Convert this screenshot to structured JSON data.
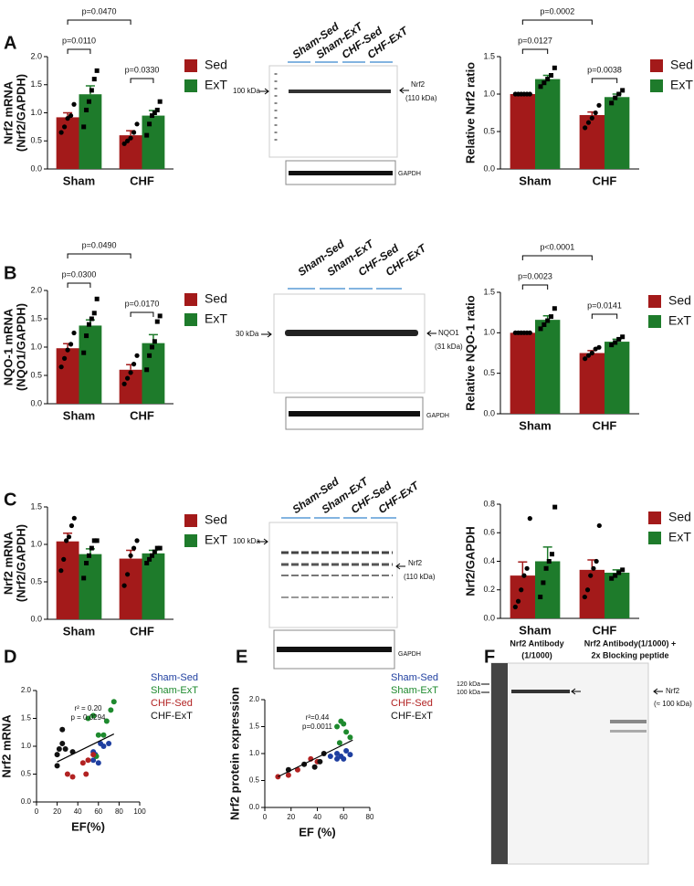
{
  "panel_labels": [
    "A",
    "B",
    "C",
    "D",
    "E",
    "F"
  ],
  "chart_data": [
    {
      "type": "bar",
      "ylabel": [
        "Nrf2 mRNA",
        "(Nrf2/GAPDH)"
      ],
      "categories": [
        "Sham",
        "CHF"
      ],
      "ylim": [
        0,
        2
      ],
      "yticks": [
        {
          "value": 0,
          "label": "0.0"
        },
        {
          "value": 0.5,
          "label": "0.5"
        },
        {
          "value": 1,
          "label": "1.0"
        },
        {
          "value": 1.5,
          "label": "1.5"
        },
        {
          "value": 2,
          "label": "2.0"
        }
      ],
      "legend": "right",
      "series": [
        {
          "name": "Sed",
          "color": "#a31a1a",
          "values": [
            0.92,
            0.6
          ],
          "errors": [
            0.08,
            0.08
          ],
          "points": [
            [
              0.65,
              0.75,
              0.9,
              0.95,
              1.15
            ],
            [
              0.45,
              0.5,
              0.55,
              0.65,
              0.8
            ]
          ]
        },
        {
          "name": "ExT",
          "color": "#1e7b2b",
          "values": [
            1.33,
            0.95
          ],
          "errors": [
            0.15,
            0.09
          ],
          "points": [
            [
              0.75,
              1.05,
              1.2,
              1.4,
              1.6,
              1.75
            ],
            [
              0.6,
              0.8,
              0.95,
              1.0,
              1.05,
              1.2
            ]
          ]
        }
      ],
      "annotations": [
        "p=0.0470",
        "p=0.0110",
        "p=0.0330"
      ]
    },
    {
      "type": "bar",
      "ylabel": [
        "Relative Nrf2 ratio"
      ],
      "categories": [
        "Sham",
        "CHF"
      ],
      "ylim": [
        0,
        1.5
      ],
      "yticks": [
        {
          "value": 0,
          "label": "0.0"
        },
        {
          "value": 0.5,
          "label": "0.5"
        },
        {
          "value": 1,
          "label": "1.0"
        },
        {
          "value": 1.5,
          "label": "1.5"
        }
      ],
      "legend": "right",
      "series": [
        {
          "name": "Sed",
          "color": "#a31a1a",
          "values": [
            1.0,
            0.72
          ],
          "errors": [
            0,
            0.04
          ],
          "points": [
            [
              1,
              1,
              1,
              1,
              1,
              1
            ],
            [
              0.55,
              0.62,
              0.68,
              0.75,
              0.85
            ]
          ]
        },
        {
          "name": "ExT",
          "color": "#1e7b2b",
          "values": [
            1.2,
            0.96
          ],
          "errors": [
            0.05,
            0.04
          ],
          "points": [
            [
              1.1,
              1.15,
              1.2,
              1.25,
              1.35
            ],
            [
              0.88,
              0.95,
              1.0,
              1.05
            ]
          ]
        }
      ],
      "annotations": [
        "p=0.0002",
        "p=0.0127",
        "p=0.0038"
      ]
    },
    {
      "type": "bar",
      "ylabel": [
        "NQO-1 mRNA",
        "(NQO1/GAPDH)"
      ],
      "categories": [
        "Sham",
        "CHF"
      ],
      "ylim": [
        0,
        2
      ],
      "yticks": [
        {
          "value": 0,
          "label": "0.0"
        },
        {
          "value": 0.5,
          "label": "0.5"
        },
        {
          "value": 1,
          "label": "1.0"
        },
        {
          "value": 1.5,
          "label": "1.5"
        },
        {
          "value": 2,
          "label": "2.0"
        }
      ],
      "legend": "right",
      "series": [
        {
          "name": "Sed",
          "color": "#a31a1a",
          "values": [
            0.98,
            0.6
          ],
          "errors": [
            0.08,
            0.09
          ],
          "points": [
            [
              0.65,
              0.8,
              0.95,
              1.05,
              1.25
            ],
            [
              0.35,
              0.45,
              0.55,
              0.7,
              0.85
            ]
          ]
        },
        {
          "name": "ExT",
          "color": "#1e7b2b",
          "values": [
            1.38,
            1.07
          ],
          "errors": [
            0.1,
            0.15
          ],
          "points": [
            [
              0.9,
              1.2,
              1.4,
              1.5,
              1.6,
              1.85
            ],
            [
              0.6,
              0.85,
              1.0,
              1.1,
              1.45,
              1.55
            ]
          ]
        }
      ],
      "annotations": [
        "p=0.0490",
        "p=0.0300",
        "p=0.0170"
      ]
    },
    {
      "type": "bar",
      "ylabel": [
        "Relative NQO-1 ratio"
      ],
      "categories": [
        "Sham",
        "CHF"
      ],
      "ylim": [
        0,
        1.5
      ],
      "yticks": [
        {
          "value": 0,
          "label": "0.0"
        },
        {
          "value": 0.5,
          "label": "0.5"
        },
        {
          "value": 1,
          "label": "1.0"
        },
        {
          "value": 1.5,
          "label": "1.5"
        }
      ],
      "legend": "right",
      "series": [
        {
          "name": "Sed",
          "color": "#a31a1a",
          "values": [
            1.0,
            0.75
          ],
          "errors": [
            0,
            0.03
          ],
          "points": [
            [
              1,
              1,
              1,
              1,
              1,
              1
            ],
            [
              0.68,
              0.72,
              0.75,
              0.8,
              0.82
            ]
          ]
        },
        {
          "name": "ExT",
          "color": "#1e7b2b",
          "values": [
            1.16,
            0.89
          ],
          "errors": [
            0.05,
            0.03
          ],
          "points": [
            [
              1.05,
              1.1,
              1.15,
              1.2,
              1.3
            ],
            [
              0.85,
              0.88,
              0.92,
              0.95
            ]
          ]
        }
      ],
      "annotations": [
        "p<0.0001",
        "p=0.0023",
        "p=0.0141"
      ]
    },
    {
      "type": "bar",
      "ylabel": [
        "Nrf2 mRNA",
        "(Nrf2/GAPDH)"
      ],
      "categories": [
        "Sham",
        "CHF"
      ],
      "ylim": [
        0,
        1.5
      ],
      "yticks": [
        {
          "value": 0,
          "label": "0.0"
        },
        {
          "value": 0.5,
          "label": "0.5"
        },
        {
          "value": 1,
          "label": "1.0"
        },
        {
          "value": 1.5,
          "label": "1.5"
        }
      ],
      "legend": "right",
      "series": [
        {
          "name": "Sed",
          "color": "#a31a1a",
          "values": [
            1.04,
            0.81
          ],
          "errors": [
            0.11,
            0.11
          ],
          "points": [
            [
              0.65,
              0.8,
              1.05,
              1.1,
              1.25,
              1.35
            ],
            [
              0.45,
              0.6,
              0.85,
              0.95,
              1.05
            ]
          ]
        },
        {
          "name": "ExT",
          "color": "#1e7b2b",
          "values": [
            0.87,
            0.88
          ],
          "errors": [
            0.07,
            0.04
          ],
          "points": [
            [
              0.55,
              0.75,
              0.85,
              0.95,
              1.05,
              1.05
            ],
            [
              0.75,
              0.8,
              0.85,
              0.9,
              0.95,
              0.95
            ]
          ]
        }
      ]
    },
    {
      "type": "bar",
      "ylabel": [
        "Nrf2/GAPDH"
      ],
      "categories": [
        "Sham",
        "CHF"
      ],
      "ylim": [
        0,
        0.8
      ],
      "yticks": [
        {
          "value": 0,
          "label": "0.0"
        },
        {
          "value": 0.2,
          "label": "0.2"
        },
        {
          "value": 0.4,
          "label": "0.4"
        },
        {
          "value": 0.6,
          "label": "0.6"
        },
        {
          "value": 0.8,
          "label": "0.8"
        }
      ],
      "legend": "right",
      "series": [
        {
          "name": "Sed",
          "color": "#a31a1a",
          "values": [
            0.3,
            0.34
          ],
          "errors": [
            0.095,
            0.07
          ],
          "points": [
            [
              0.08,
              0.12,
              0.2,
              0.3,
              0.35,
              0.7
            ],
            [
              0.15,
              0.2,
              0.3,
              0.35,
              0.4,
              0.65
            ]
          ]
        },
        {
          "name": "ExT",
          "color": "#1e7b2b",
          "values": [
            0.4,
            0.32
          ],
          "errors": [
            0.1,
            0.02
          ],
          "points": [
            [
              0.15,
              0.25,
              0.35,
              0.4,
              0.45,
              0.78
            ],
            [
              0.28,
              0.3,
              0.32,
              0.34
            ]
          ]
        }
      ]
    },
    {
      "type": "scatter",
      "xlabel": "EF(%)",
      "ylabel": [
        "Nrf2 mRNA"
      ],
      "xlim": [
        0,
        100
      ],
      "xticks": [
        0,
        20,
        40,
        60,
        80,
        100
      ],
      "ylim": [
        0,
        2
      ],
      "yticks": [
        {
          "value": 0,
          "label": "0.0"
        },
        {
          "value": 0.5,
          "label": "0.5"
        },
        {
          "value": 1,
          "label": "1.0"
        },
        {
          "value": 1.5,
          "label": "1.5"
        },
        {
          "value": 2,
          "label": "2.0"
        }
      ],
      "legend": "right",
      "annotations": [
        "r² = 0.20",
        "p = 0.0294"
      ],
      "trend": {
        "x": [
          20,
          75
        ],
        "y": [
          0.72,
          1.22
        ]
      },
      "series": [
        {
          "name": "Sham-Sed",
          "color": "#1f3fa0",
          "x": [
            55,
            57,
            60,
            62,
            65,
            70,
            55
          ],
          "y": [
            0.75,
            0.85,
            0.7,
            1.05,
            1.0,
            1.05,
            0.9
          ]
        },
        {
          "name": "Sham-ExT",
          "color": "#1e8a2e",
          "x": [
            50,
            55,
            60,
            65,
            68,
            72,
            75,
            58
          ],
          "y": [
            1.5,
            1.55,
            1.2,
            1.2,
            1.45,
            1.65,
            1.8,
            0.82
          ]
        },
        {
          "name": "CHF-Sed",
          "color": "#b22222",
          "x": [
            30,
            35,
            45,
            48,
            50,
            55
          ],
          "y": [
            0.5,
            0.45,
            0.7,
            0.5,
            0.75,
            0.85
          ]
        },
        {
          "name": "CHF-ExT",
          "color": "#111111",
          "x": [
            20,
            22,
            25,
            20,
            28,
            35,
            25
          ],
          "y": [
            0.65,
            0.95,
            1.3,
            0.85,
            0.95,
            0.9,
            1.05
          ]
        }
      ]
    },
    {
      "type": "scatter",
      "xlabel": "EF (%)",
      "ylabel": [
        "Nrf2 protein expression"
      ],
      "xlim": [
        0,
        80
      ],
      "xticks": [
        0,
        20,
        40,
        60,
        80
      ],
      "ylim": [
        0,
        2
      ],
      "yticks": [
        {
          "value": 0,
          "label": "0.0"
        },
        {
          "value": 0.5,
          "label": "0.5"
        },
        {
          "value": 1,
          "label": "1.0"
        },
        {
          "value": 1.5,
          "label": "1.5"
        },
        {
          "value": 2,
          "label": "2.0"
        }
      ],
      "legend": "right",
      "annotations": [
        "r²=0.44",
        "p=0.0011"
      ],
      "trend": {
        "x": [
          10,
          67
        ],
        "y": [
          0.57,
          1.25
        ]
      },
      "series": [
        {
          "name": "Sham-Sed",
          "color": "#1f3fa0",
          "x": [
            50,
            55,
            58,
            60,
            62,
            65,
            55
          ],
          "y": [
            0.95,
            1.0,
            0.95,
            0.9,
            1.05,
            0.98,
            0.9
          ]
        },
        {
          "name": "Sham-ExT",
          "color": "#1e8a2e",
          "x": [
            55,
            58,
            60,
            62,
            65,
            57
          ],
          "y": [
            1.5,
            1.6,
            1.55,
            1.4,
            1.3,
            1.2
          ]
        },
        {
          "name": "CHF-Sed",
          "color": "#b22222",
          "x": [
            10,
            18,
            25,
            35,
            40
          ],
          "y": [
            0.57,
            0.6,
            0.7,
            0.9,
            0.85
          ]
        },
        {
          "name": "CHF-ExT",
          "color": "#111111",
          "x": [
            18,
            30,
            38,
            42,
            45
          ],
          "y": [
            0.7,
            0.8,
            0.75,
            0.85,
            1.0
          ]
        }
      ]
    }
  ],
  "blots": [
    {
      "lanes": [
        "Sham-Sed",
        "Sham-ExT",
        "CHF-Sed",
        "CHF-ExT"
      ],
      "marker": "100 kDa",
      "target": [
        "Nrf2",
        "(110 kDa)"
      ],
      "loading": "GAPDH"
    },
    {
      "lanes": [
        "Sham-Sed",
        "Sham-ExT",
        "CHF-Sed",
        "CHF-ExT"
      ],
      "marker": "30 kDa",
      "target": [
        "NQO1",
        "(31 kDa)"
      ],
      "loading": "GAPDH"
    },
    {
      "lanes": [
        "Sham-Sed",
        "Sham-ExT",
        "CHF-Sed",
        "CHF-ExT"
      ],
      "marker": "100 kDa",
      "target": [
        "Nrf2",
        "(110 kDa)"
      ],
      "loading": "GAPDH"
    },
    {
      "groups": [
        [
          "Nrf2 Antibody",
          "(1/1000)"
        ],
        [
          "Nrf2 Antibody(1/1000) +",
          "2x Blocking peptide"
        ]
      ],
      "markers": [
        "120 kDa",
        "100 kDa"
      ],
      "target": [
        "Nrf2",
        "(≈ 100 kDa)"
      ]
    }
  ]
}
